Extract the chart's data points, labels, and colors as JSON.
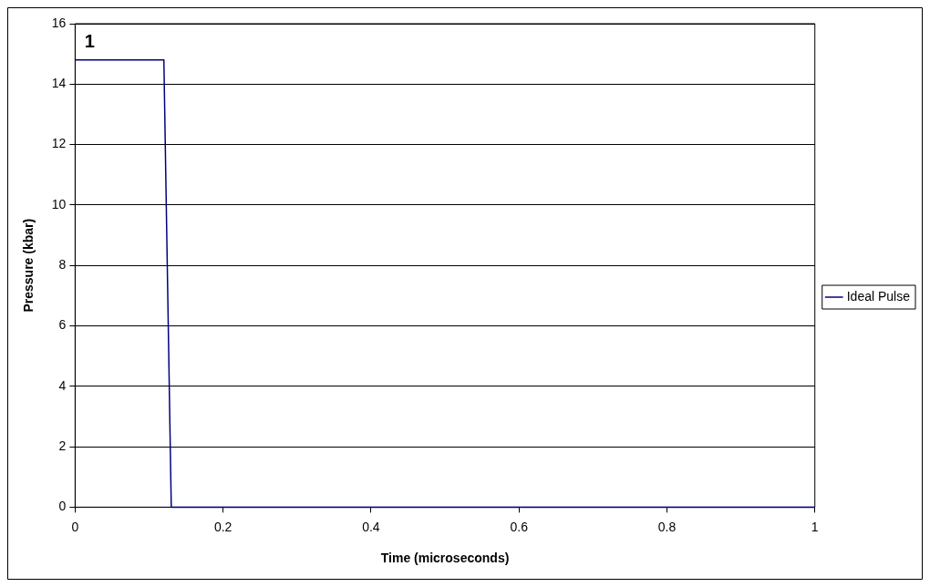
{
  "chart_data": {
    "type": "line",
    "xlabel": "Time (microseconds)",
    "ylabel": "Pressure (kbar)",
    "x": [
      0,
      0.12,
      0.13,
      1
    ],
    "series": [
      {
        "name": "Ideal Pulse",
        "color": "#000080",
        "values": [
          14.8,
          14.8,
          0,
          0
        ]
      }
    ],
    "xlim": [
      0,
      1
    ],
    "xticks": [
      0,
      0.2,
      0.4,
      0.6,
      0.8,
      1
    ],
    "ylim": [
      0,
      16
    ],
    "yticks": [
      0,
      2,
      4,
      6,
      8,
      10,
      12,
      14,
      16
    ],
    "grid": "y",
    "legend": "right",
    "marker": "none",
    "line_style": "solid",
    "annotations": [
      "1"
    ]
  }
}
